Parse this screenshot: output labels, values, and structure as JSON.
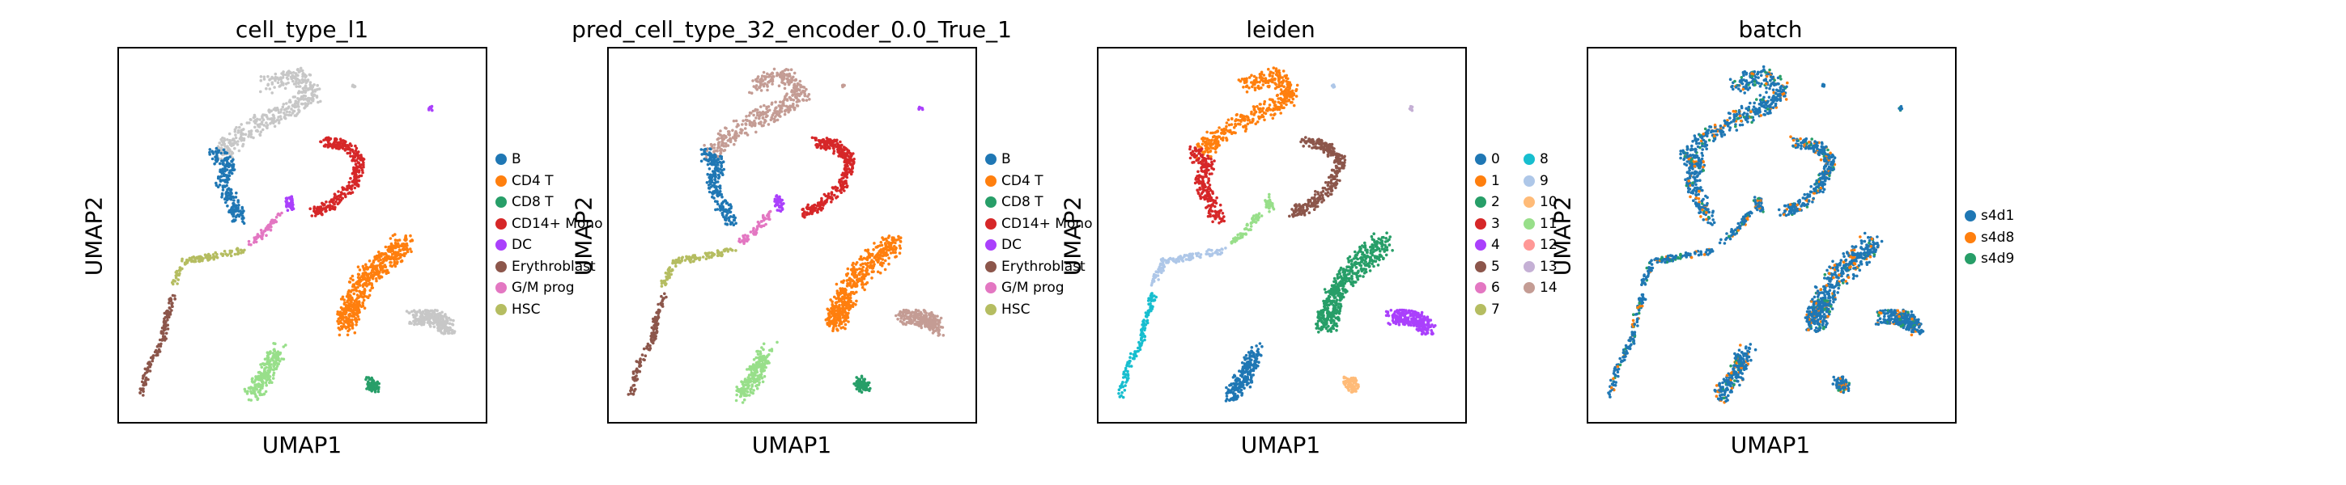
{
  "chart_data": [
    {
      "type": "scatter",
      "title": "cell_type_l1",
      "xlabel": "UMAP1",
      "ylabel": "UMAP2",
      "legend_placement": "right",
      "legend": [
        {
          "name": "B",
          "color": "#1f77b4"
        },
        {
          "name": "CD4 T",
          "color": "#ff7f0e"
        },
        {
          "name": "CD8 T",
          "color": "#279e68"
        },
        {
          "name": "CD14+ Mono",
          "color": "#d62728"
        },
        {
          "name": "DC",
          "color": "#aa40fc"
        },
        {
          "name": "Erythroblast",
          "color": "#8c564b"
        },
        {
          "name": "G/M prog",
          "color": "#e377c2"
        },
        {
          "name": "HSC",
          "color": "#b5bd61"
        }
      ]
    },
    {
      "type": "scatter",
      "title": "pred_cell_type_32_encoder_0.0_True_1",
      "xlabel": "UMAP1",
      "ylabel": "UMAP2",
      "legend_placement": "right",
      "legend": [
        {
          "name": "B",
          "color": "#1f77b4"
        },
        {
          "name": "CD4 T",
          "color": "#ff7f0e"
        },
        {
          "name": "CD8 T",
          "color": "#279e68"
        },
        {
          "name": "CD14+ Mono",
          "color": "#d62728"
        },
        {
          "name": "DC",
          "color": "#aa40fc"
        },
        {
          "name": "Erythroblast",
          "color": "#8c564b"
        },
        {
          "name": "G/M prog",
          "color": "#e377c2"
        },
        {
          "name": "HSC",
          "color": "#b5bd61"
        }
      ]
    },
    {
      "type": "scatter",
      "title": "leiden",
      "xlabel": "UMAP1",
      "ylabel": "UMAP2",
      "legend_placement": "right",
      "legend": [
        {
          "name": "0",
          "color": "#1f77b4"
        },
        {
          "name": "1",
          "color": "#ff7f0e"
        },
        {
          "name": "2",
          "color": "#279e68"
        },
        {
          "name": "3",
          "color": "#d62728"
        },
        {
          "name": "4",
          "color": "#aa40fc"
        },
        {
          "name": "5",
          "color": "#8c564b"
        },
        {
          "name": "6",
          "color": "#e377c2"
        },
        {
          "name": "7",
          "color": "#b5bd61"
        },
        {
          "name": "8",
          "color": "#17becf"
        },
        {
          "name": "9",
          "color": "#aec7e8"
        },
        {
          "name": "10",
          "color": "#ffbb78"
        },
        {
          "name": "11",
          "color": "#98df8a"
        },
        {
          "name": "12",
          "color": "#ff9896"
        },
        {
          "name": "13",
          "color": "#c5b0d5"
        },
        {
          "name": "14",
          "color": "#c49c94"
        }
      ]
    },
    {
      "type": "scatter",
      "title": "batch",
      "xlabel": "UMAP1",
      "ylabel": "UMAP2",
      "legend_placement": "right",
      "legend": [
        {
          "name": "s4d1",
          "color": "#1f77b4"
        },
        {
          "name": "s4d8",
          "color": "#ff7f0e"
        },
        {
          "name": "s4d9",
          "color": "#279e68"
        }
      ]
    }
  ]
}
